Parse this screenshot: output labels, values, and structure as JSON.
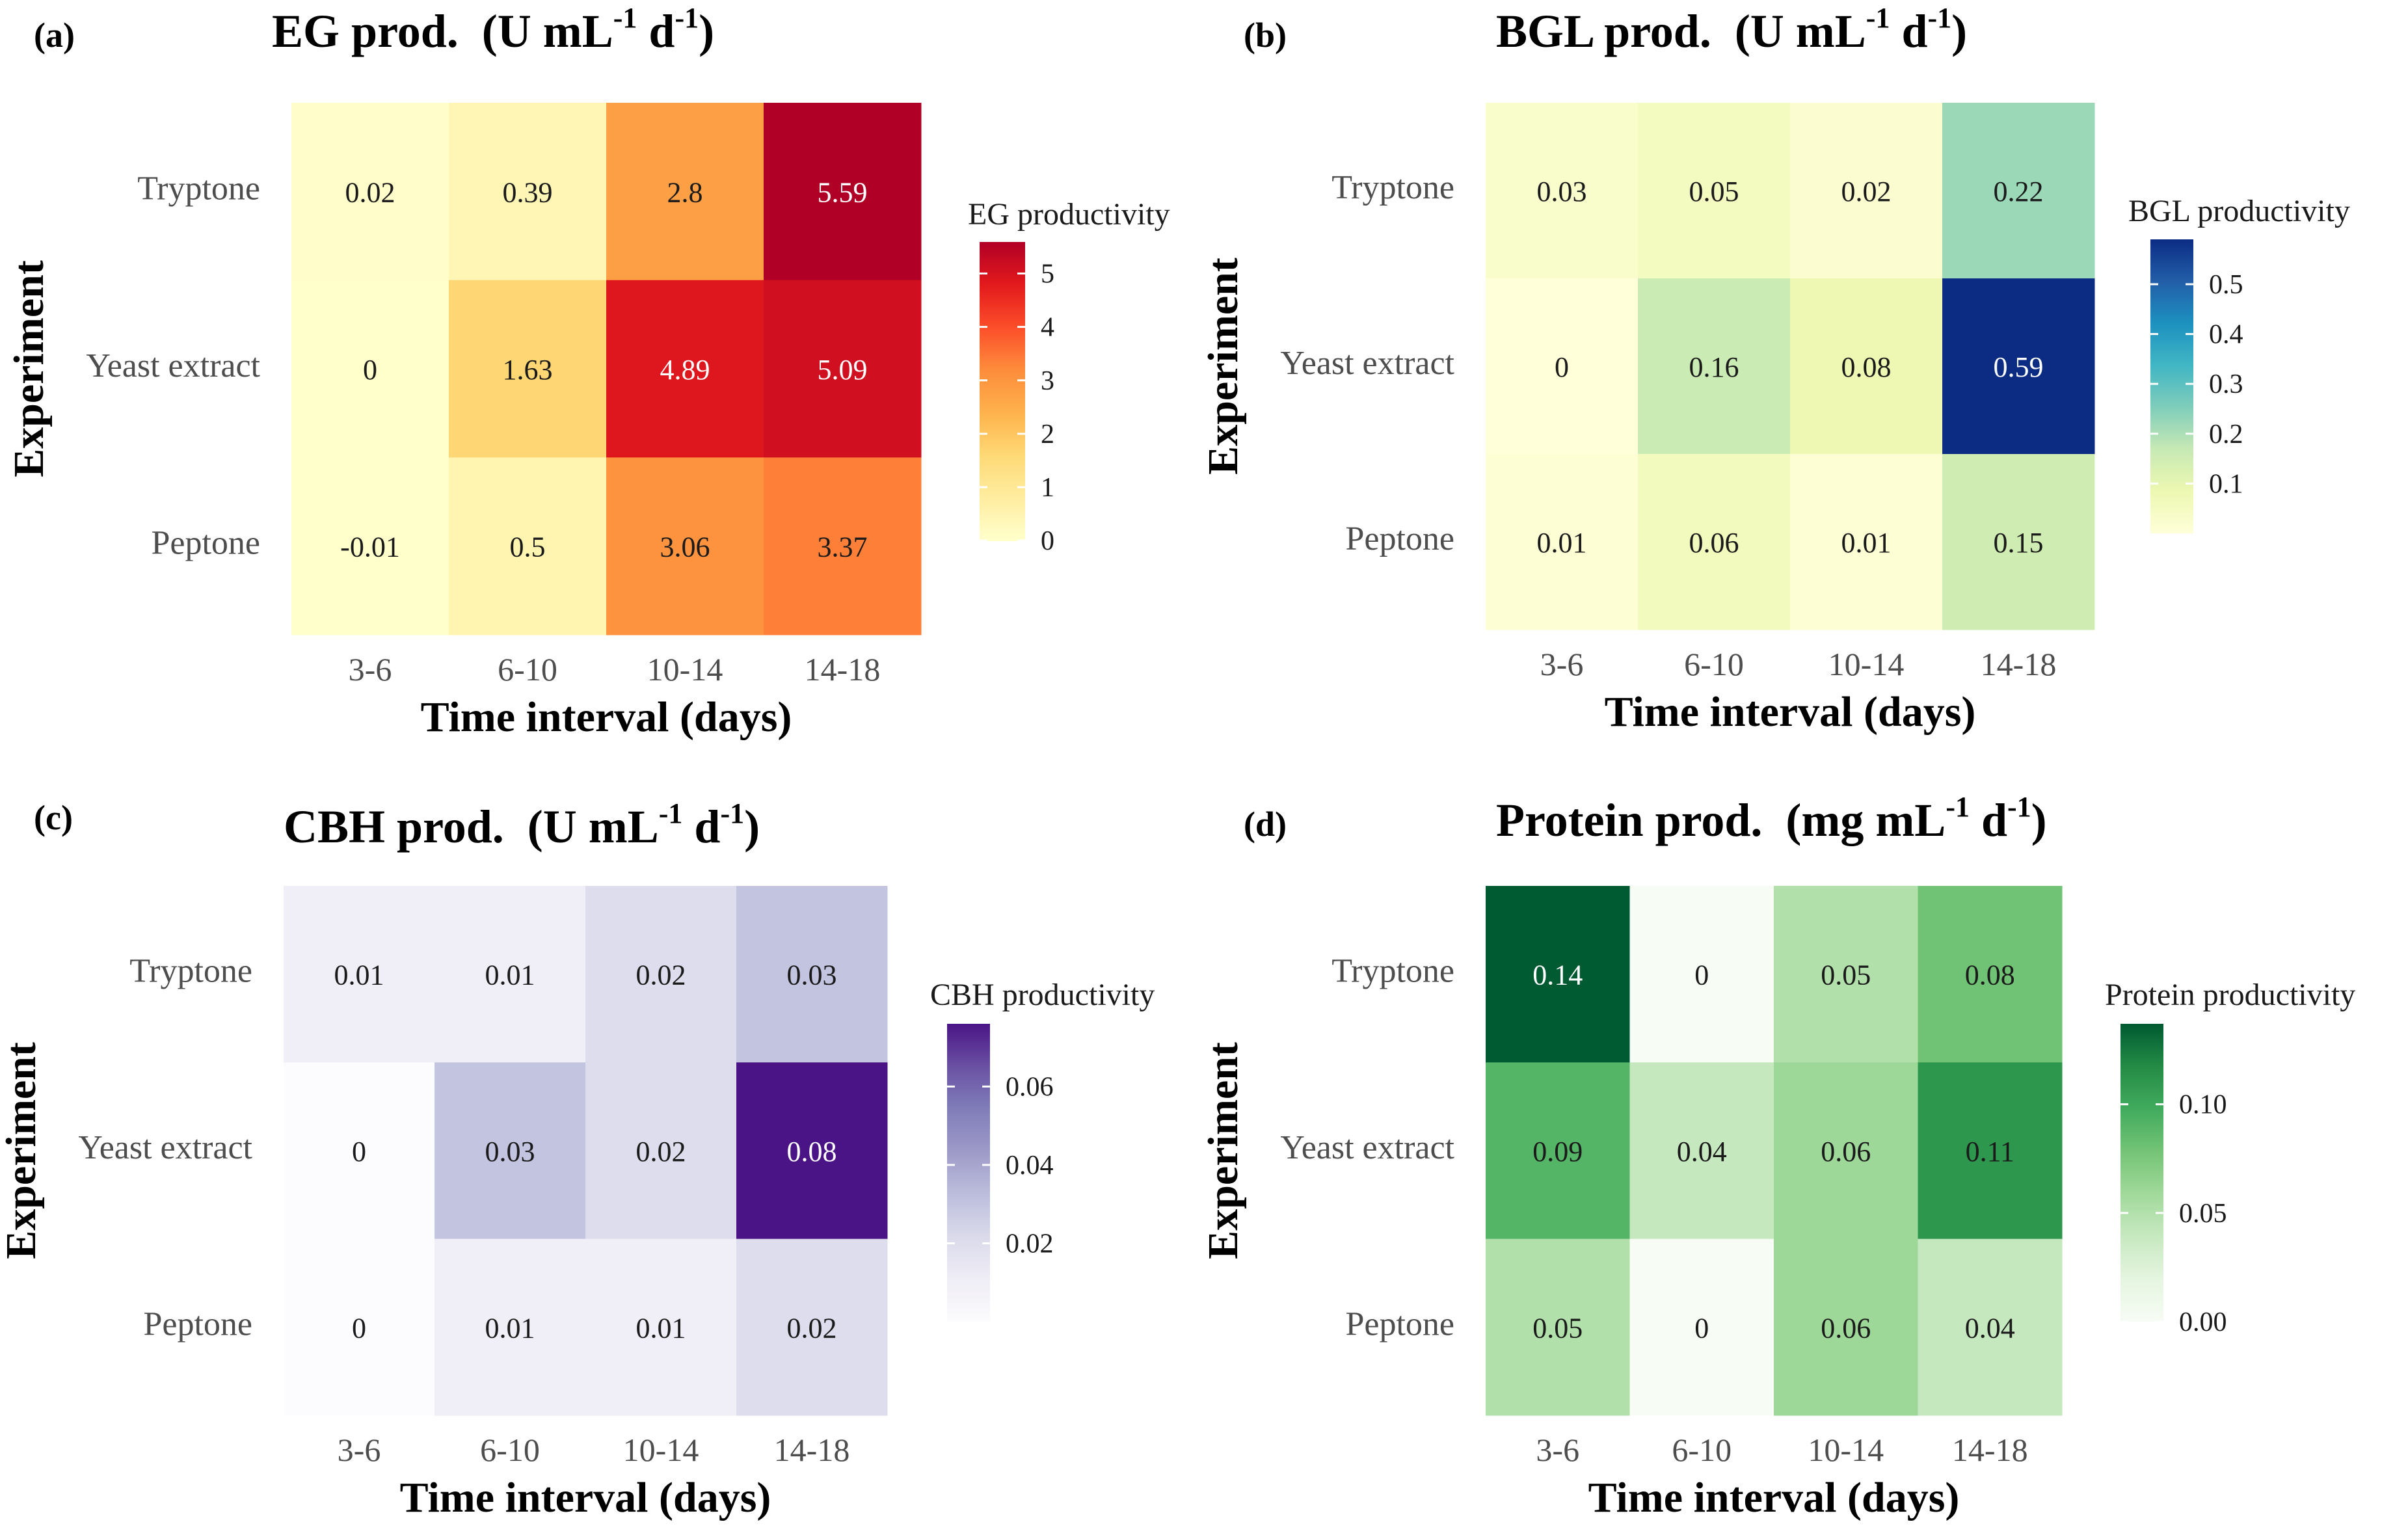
{
  "chart_data": [
    {
      "type": "heatmap",
      "panel_label": "(a)",
      "title_prefix": "EG prod.",
      "title_units": {
        "open": "(U mL",
        "exp1": "-1",
        "mid": " d",
        "exp2": "-1",
        "close": ")"
      },
      "xlabel": "Time interval (days)",
      "ylabel": "Experiment",
      "categories": [
        "3-6",
        "6-10",
        "10-14",
        "14-18"
      ],
      "rows": [
        "Tryptone",
        "Yeast extract",
        "Peptone"
      ],
      "values": [
        [
          0.02,
          0.39,
          2.8,
          5.59
        ],
        [
          0,
          1.63,
          4.89,
          5.09
        ],
        [
          -0.01,
          0.5,
          3.06,
          3.37
        ]
      ],
      "value_labels": [
        [
          "0.02",
          "0.39",
          "2.8",
          "5.59"
        ],
        [
          "0",
          "1.63",
          "4.89",
          "5.09"
        ],
        [
          "-0.01",
          "0.5",
          "3.06",
          "3.37"
        ]
      ],
      "legend_title": "EG productivity",
      "legend_ticks": [
        0,
        1,
        2,
        3,
        4,
        5
      ],
      "legend_tick_labels": [
        "0",
        "1",
        "2",
        "3",
        "4",
        "5"
      ],
      "value_range": [
        -0.01,
        5.59
      ],
      "colors": [
        "#ffffcc",
        "#ffeda0",
        "#fed976",
        "#feb24c",
        "#fd8d3c",
        "#fc4e2a",
        "#e31a1c",
        "#b10026"
      ]
    },
    {
      "type": "heatmap",
      "panel_label": "(b)",
      "title_prefix": "BGL prod.",
      "title_units": {
        "open": "(U mL",
        "exp1": "-1",
        "mid": " d",
        "exp2": "-1",
        "close": ")"
      },
      "xlabel": "Time interval (days)",
      "ylabel": "Experiment",
      "categories": [
        "3-6",
        "6-10",
        "10-14",
        "14-18"
      ],
      "rows": [
        "Tryptone",
        "Yeast extract",
        "Peptone"
      ],
      "values": [
        [
          0.03,
          0.05,
          0.02,
          0.22
        ],
        [
          0,
          0.16,
          0.08,
          0.59
        ],
        [
          0.01,
          0.06,
          0.01,
          0.15
        ]
      ],
      "value_labels": [
        [
          "0.03",
          "0.05",
          "0.02",
          "0.22"
        ],
        [
          "0",
          "0.16",
          "0.08",
          "0.59"
        ],
        [
          "0.01",
          "0.06",
          "0.01",
          "0.15"
        ]
      ],
      "legend_title": "BGL productivity",
      "legend_ticks": [
        0.1,
        0.2,
        0.3,
        0.4,
        0.5
      ],
      "legend_tick_labels": [
        "0.1",
        "0.2",
        "0.3",
        "0.4",
        "0.5"
      ],
      "value_range": [
        0,
        0.59
      ],
      "colors": [
        "#ffffd9",
        "#edf8b1",
        "#c7e9b4",
        "#7fcdbb",
        "#41b6c4",
        "#1d91c0",
        "#225ea8",
        "#0c2c84"
      ]
    },
    {
      "type": "heatmap",
      "panel_label": "(c)",
      "title_prefix": "CBH prod.",
      "title_units": {
        "open": "(U mL",
        "exp1": "-1",
        "mid": " d",
        "exp2": "-1",
        "close": ")"
      },
      "xlabel": "Time interval (days)",
      "ylabel": "Experiment",
      "categories": [
        "3-6",
        "6-10",
        "10-14",
        "14-18"
      ],
      "rows": [
        "Tryptone",
        "Yeast extract",
        "Peptone"
      ],
      "values": [
        [
          0.01,
          0.01,
          0.02,
          0.03
        ],
        [
          0,
          0.03,
          0.02,
          0.08
        ],
        [
          0,
          0.01,
          0.01,
          0.02
        ]
      ],
      "value_labels": [
        [
          "0.01",
          "0.01",
          "0.02",
          "0.03"
        ],
        [
          "0",
          "0.03",
          "0.02",
          "0.08"
        ],
        [
          "0",
          "0.01",
          "0.01",
          "0.02"
        ]
      ],
      "legend_title": "CBH productivity",
      "legend_ticks": [
        0.02,
        0.04,
        0.06
      ],
      "legend_tick_labels": [
        "0.02",
        "0.04",
        "0.06"
      ],
      "value_range": [
        0,
        0.076
      ],
      "colors": [
        "#fcfbfd",
        "#efedf5",
        "#dadaeb",
        "#bcbddc",
        "#9e9ac8",
        "#807dba",
        "#6a51a3",
        "#4a1486"
      ]
    },
    {
      "type": "heatmap",
      "panel_label": "(d)",
      "title_prefix": "Protein prod.",
      "title_units": {
        "open": "(mg mL",
        "exp1": "-1",
        "mid": " d",
        "exp2": "-1",
        "close": ")"
      },
      "xlabel": "Time interval (days)",
      "ylabel": "Experiment",
      "categories": [
        "3-6",
        "6-10",
        "10-14",
        "14-18"
      ],
      "rows": [
        "Tryptone",
        "Yeast extract",
        "Peptone"
      ],
      "values": [
        [
          0.14,
          0,
          0.05,
          0.08
        ],
        [
          0.09,
          0.04,
          0.06,
          0.11
        ],
        [
          0.05,
          0,
          0.06,
          0.04
        ]
      ],
      "value_labels": [
        [
          "0.14",
          "0",
          "0.05",
          "0.08"
        ],
        [
          "0.09",
          "0.04",
          "0.06",
          "0.11"
        ],
        [
          "0.05",
          "0",
          "0.06",
          "0.04"
        ]
      ],
      "legend_title": "Protein productivity",
      "legend_ticks": [
        0,
        0.05,
        0.1
      ],
      "legend_tick_labels": [
        "0.00",
        "0.05",
        "0.10"
      ],
      "value_range": [
        0,
        0.137
      ],
      "colors": [
        "#f7fcf5",
        "#e5f5e0",
        "#c7e9c0",
        "#a1d99b",
        "#74c476",
        "#41ab5d",
        "#238b45",
        "#005a32"
      ]
    }
  ]
}
